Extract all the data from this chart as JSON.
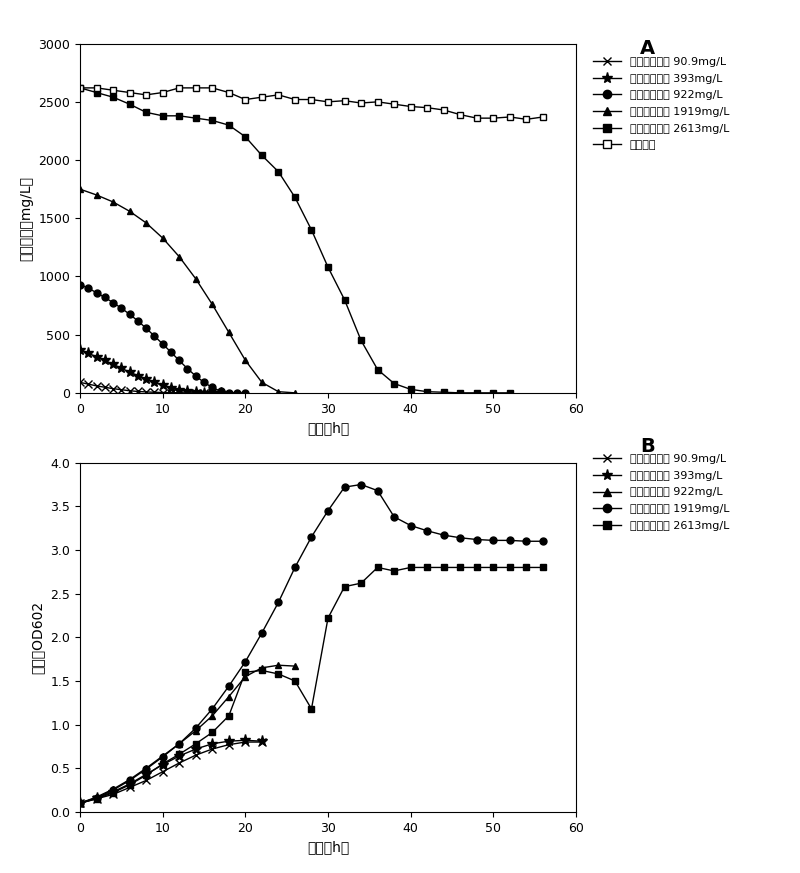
{
  "panel_A": {
    "title": "A",
    "xlabel": "时间（h）",
    "ylabel": "吵啊浓度（mg/L）",
    "xlim": [
      0,
      60
    ],
    "ylim": [
      0,
      3000
    ],
    "yticks": [
      0,
      500,
      1000,
      1500,
      2000,
      2500,
      3000
    ],
    "xticks": [
      0,
      10,
      20,
      30,
      40,
      50,
      60
    ],
    "series": [
      {
        "label": "吵啊初始浓度 90.9mg/L",
        "marker": "x",
        "mfc": "#000000",
        "x": [
          0,
          1,
          2,
          3,
          4,
          5,
          6,
          7,
          8,
          9,
          10,
          11,
          12,
          13,
          14,
          15,
          16
        ],
        "y": [
          90,
          75,
          60,
          48,
          36,
          27,
          18,
          12,
          8,
          5,
          3,
          2,
          1,
          0,
          0,
          0,
          0
        ]
      },
      {
        "label": "吵啊初始浓度 393mg/L",
        "marker": "*",
        "mfc": "#000000",
        "x": [
          0,
          1,
          2,
          3,
          4,
          5,
          6,
          7,
          8,
          9,
          10,
          11,
          12,
          13,
          14,
          15,
          16,
          17
        ],
        "y": [
          370,
          340,
          310,
          278,
          245,
          212,
          178,
          148,
          118,
          90,
          65,
          42,
          25,
          12,
          4,
          1,
          0,
          0
        ]
      },
      {
        "label": "吵啊初始浓度 922mg/L",
        "marker": "o",
        "mfc": "#000000",
        "x": [
          0,
          1,
          2,
          3,
          4,
          5,
          6,
          7,
          8,
          9,
          10,
          11,
          12,
          13,
          14,
          15,
          16,
          17,
          18,
          19,
          20
        ],
        "y": [
          930,
          900,
          860,
          820,
          775,
          728,
          675,
          618,
          555,
          488,
          420,
          350,
          278,
          208,
          145,
          90,
          46,
          15,
          3,
          0,
          0
        ]
      },
      {
        "label": "吵啊初始浓度 1919mg/L",
        "marker": "^",
        "mfc": "#000000",
        "x": [
          0,
          2,
          4,
          6,
          8,
          10,
          12,
          14,
          16,
          18,
          20,
          22,
          24,
          26
        ],
        "y": [
          1750,
          1700,
          1640,
          1560,
          1460,
          1330,
          1170,
          980,
          760,
          520,
          280,
          90,
          10,
          0
        ]
      },
      {
        "label": "吵啊初始浓度 2613mg/L",
        "marker": "s",
        "mfc": "#000000",
        "x": [
          0,
          2,
          4,
          6,
          8,
          10,
          12,
          14,
          16,
          18,
          20,
          22,
          24,
          26,
          28,
          30,
          32,
          34,
          36,
          38,
          40,
          42,
          44,
          46,
          48,
          50,
          52
        ],
        "y": [
          2620,
          2580,
          2540,
          2480,
          2410,
          2380,
          2380,
          2360,
          2340,
          2300,
          2200,
          2040,
          1900,
          1680,
          1400,
          1080,
          800,
          450,
          200,
          80,
          30,
          10,
          5,
          0,
          0,
          0,
          0
        ]
      },
      {
        "label": "空白对照",
        "marker": "s",
        "mfc": "#ffffff",
        "x": [
          0,
          2,
          4,
          6,
          8,
          10,
          12,
          14,
          16,
          18,
          20,
          22,
          24,
          26,
          28,
          30,
          32,
          34,
          36,
          38,
          40,
          42,
          44,
          46,
          48,
          50,
          52,
          54,
          56
        ],
        "y": [
          2620,
          2620,
          2600,
          2580,
          2560,
          2580,
          2620,
          2620,
          2620,
          2580,
          2520,
          2540,
          2560,
          2520,
          2520,
          2500,
          2510,
          2490,
          2500,
          2480,
          2460,
          2450,
          2430,
          2390,
          2360,
          2360,
          2370,
          2350,
          2370
        ]
      }
    ]
  },
  "panel_B": {
    "title": "B",
    "xlabel": "时间（h）",
    "ylabel": "菌密度OD602",
    "xlim": [
      0,
      60
    ],
    "ylim": [
      0,
      4.0
    ],
    "yticks": [
      0.0,
      0.5,
      1.0,
      1.5,
      2.0,
      2.5,
      3.0,
      3.5,
      4.0
    ],
    "xticks": [
      0,
      10,
      20,
      30,
      40,
      50,
      60
    ],
    "series": [
      {
        "label": "吵啊初始浓度 90.9mg/L",
        "marker": "x",
        "mfc": "#000000",
        "x": [
          0,
          2,
          4,
          6,
          8,
          10,
          12,
          14,
          16,
          18,
          20,
          22
        ],
        "y": [
          0.1,
          0.15,
          0.2,
          0.28,
          0.36,
          0.46,
          0.56,
          0.65,
          0.72,
          0.77,
          0.8,
          0.8
        ]
      },
      {
        "label": "吵啊初始浓度 393mg/L",
        "marker": "*",
        "mfc": "#000000",
        "x": [
          0,
          2,
          4,
          6,
          8,
          10,
          12,
          14,
          16,
          18,
          20,
          22
        ],
        "y": [
          0.1,
          0.16,
          0.23,
          0.32,
          0.43,
          0.54,
          0.64,
          0.72,
          0.78,
          0.81,
          0.82,
          0.81
        ]
      },
      {
        "label": "吵啊初始浓度 922mg/L",
        "marker": "^",
        "mfc": "#000000",
        "x": [
          0,
          2,
          4,
          6,
          8,
          10,
          12,
          14,
          16,
          18,
          20,
          22,
          24,
          26
        ],
        "y": [
          0.1,
          0.17,
          0.26,
          0.37,
          0.5,
          0.64,
          0.78,
          0.93,
          1.1,
          1.32,
          1.55,
          1.65,
          1.68,
          1.67
        ]
      },
      {
        "label": "吵啊初始浓度 1919mg/L",
        "marker": "o",
        "mfc": "#000000",
        "x": [
          0,
          2,
          4,
          6,
          8,
          10,
          12,
          14,
          16,
          18,
          20,
          22,
          24,
          26,
          28,
          30,
          32,
          34,
          36,
          38,
          40,
          42,
          44,
          46,
          48,
          50,
          52,
          54,
          56
        ],
        "y": [
          0.1,
          0.16,
          0.25,
          0.36,
          0.49,
          0.63,
          0.78,
          0.96,
          1.18,
          1.44,
          1.72,
          2.05,
          2.4,
          2.8,
          3.15,
          3.45,
          3.72,
          3.75,
          3.68,
          3.38,
          3.28,
          3.22,
          3.17,
          3.14,
          3.12,
          3.11,
          3.11,
          3.1,
          3.1
        ]
      },
      {
        "label": "吵啊初始浓度 2613mg/L",
        "marker": "s",
        "mfc": "#000000",
        "x": [
          0,
          2,
          4,
          6,
          8,
          10,
          12,
          14,
          16,
          18,
          20,
          22,
          24,
          26,
          28,
          30,
          32,
          34,
          36,
          38,
          40,
          42,
          44,
          46,
          48,
          50,
          52,
          54,
          56
        ],
        "y": [
          0.1,
          0.15,
          0.22,
          0.31,
          0.42,
          0.55,
          0.66,
          0.78,
          0.91,
          1.1,
          1.6,
          1.62,
          1.58,
          1.5,
          1.18,
          2.22,
          2.58,
          2.62,
          2.8,
          2.76,
          2.8,
          2.8,
          2.8,
          2.8,
          2.8,
          2.8,
          2.8,
          2.8,
          2.8
        ]
      }
    ]
  }
}
